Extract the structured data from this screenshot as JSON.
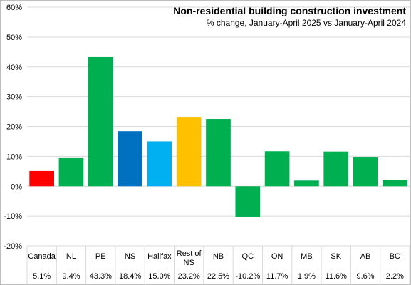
{
  "chart_data": {
    "type": "bar",
    "title": "Non-residential building construction investment",
    "subtitle": "% change, January-April 2025 vs January-April 2024",
    "categories": [
      "Canada",
      "NL",
      "PE",
      "NS",
      "Halifax",
      "Rest of NS",
      "NB",
      "QC",
      "ON",
      "MB",
      "SK",
      "AB",
      "BC"
    ],
    "values": [
      5.1,
      9.4,
      43.3,
      18.4,
      15.0,
      23.2,
      22.5,
      -10.2,
      11.7,
      1.9,
      11.6,
      9.6,
      2.2
    ],
    "value_labels": [
      "5.1%",
      "9.4%",
      "43.3%",
      "18.4%",
      "15.0%",
      "23.2%",
      "22.5%",
      "-10.2%",
      "11.7%",
      "1.9%",
      "11.6%",
      "9.6%",
      "2.2%"
    ],
    "colors": [
      "#ff0000",
      "#00b050",
      "#00b050",
      "#0070c0",
      "#00b0f0",
      "#ffc000",
      "#00b050",
      "#00b050",
      "#00b050",
      "#00b050",
      "#00b050",
      "#00b050",
      "#00b050"
    ],
    "ylim": [
      -20,
      60
    ],
    "yticks": [
      -20,
      -10,
      0,
      10,
      20,
      30,
      40,
      50,
      60
    ],
    "ytick_labels": [
      "-20%",
      "-10%",
      "0%",
      "10%",
      "20%",
      "30%",
      "40%",
      "50%",
      "60%"
    ],
    "grid": true,
    "gridline_color": "#d9d9d9"
  }
}
